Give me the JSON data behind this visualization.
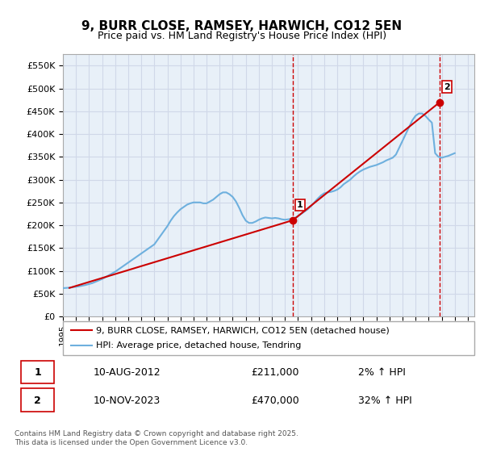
{
  "title": "9, BURR CLOSE, RAMSEY, HARWICH, CO12 5EN",
  "subtitle": "Price paid vs. HM Land Registry's House Price Index (HPI)",
  "xlabel": "",
  "ylabel": "",
  "ylim": [
    0,
    575000
  ],
  "xlim_start": 1995.0,
  "xlim_end": 2026.5,
  "yticks": [
    0,
    50000,
    100000,
    150000,
    200000,
    250000,
    300000,
    350000,
    400000,
    450000,
    500000,
    550000
  ],
  "ytick_labels": [
    "£0",
    "£50K",
    "£100K",
    "£150K",
    "£200K",
    "£250K",
    "£300K",
    "£350K",
    "£400K",
    "£450K",
    "£500K",
    "£550K"
  ],
  "xticks": [
    1995,
    1996,
    1997,
    1998,
    1999,
    2000,
    2001,
    2002,
    2003,
    2004,
    2005,
    2006,
    2007,
    2008,
    2009,
    2010,
    2011,
    2012,
    2013,
    2014,
    2015,
    2016,
    2017,
    2018,
    2019,
    2020,
    2021,
    2022,
    2023,
    2024,
    2025,
    2026
  ],
  "hpi_color": "#6eb0de",
  "price_color": "#cc0000",
  "vline_color": "#cc0000",
  "grid_color": "#d0d8e8",
  "background_color": "#e8f0f8",
  "plot_bg_color": "#e8f0f8",
  "sale1_x": 2012.61,
  "sale1_y": 211000,
  "sale1_label": "1",
  "sale2_x": 2023.86,
  "sale2_y": 470000,
  "sale2_label": "2",
  "legend_line1": "9, BURR CLOSE, RAMSEY, HARWICH, CO12 5EN (detached house)",
  "legend_line2": "HPI: Average price, detached house, Tendring",
  "annotation1_date": "10-AUG-2012",
  "annotation1_price": "£211,000",
  "annotation1_hpi": "2% ↑ HPI",
  "annotation2_date": "10-NOV-2023",
  "annotation2_price": "£470,000",
  "annotation2_hpi": "32% ↑ HPI",
  "footnote": "Contains HM Land Registry data © Crown copyright and database right 2025.\nThis data is licensed under the Open Government Licence v3.0.",
  "hpi_data_x": [
    1995.0,
    1995.25,
    1995.5,
    1995.75,
    1996.0,
    1996.25,
    1996.5,
    1996.75,
    1997.0,
    1997.25,
    1997.5,
    1997.75,
    1998.0,
    1998.25,
    1998.5,
    1998.75,
    1999.0,
    1999.25,
    1999.5,
    1999.75,
    2000.0,
    2000.25,
    2000.5,
    2000.75,
    2001.0,
    2001.25,
    2001.5,
    2001.75,
    2002.0,
    2002.25,
    2002.5,
    2002.75,
    2003.0,
    2003.25,
    2003.5,
    2003.75,
    2004.0,
    2004.25,
    2004.5,
    2004.75,
    2005.0,
    2005.25,
    2005.5,
    2005.75,
    2006.0,
    2006.25,
    2006.5,
    2006.75,
    2007.0,
    2007.25,
    2007.5,
    2007.75,
    2008.0,
    2008.25,
    2008.5,
    2008.75,
    2009.0,
    2009.25,
    2009.5,
    2009.75,
    2010.0,
    2010.25,
    2010.5,
    2010.75,
    2011.0,
    2011.25,
    2011.5,
    2011.75,
    2012.0,
    2012.25,
    2012.5,
    2012.75,
    2013.0,
    2013.25,
    2013.5,
    2013.75,
    2014.0,
    2014.25,
    2014.5,
    2014.75,
    2015.0,
    2015.25,
    2015.5,
    2015.75,
    2016.0,
    2016.25,
    2016.5,
    2016.75,
    2017.0,
    2017.25,
    2017.5,
    2017.75,
    2018.0,
    2018.25,
    2018.5,
    2018.75,
    2019.0,
    2019.25,
    2019.5,
    2019.75,
    2020.0,
    2020.25,
    2020.5,
    2020.75,
    2021.0,
    2021.25,
    2021.5,
    2021.75,
    2022.0,
    2022.25,
    2022.5,
    2022.75,
    2023.0,
    2023.25,
    2023.5,
    2023.75,
    2024.0,
    2024.25,
    2024.5,
    2024.75,
    2025.0
  ],
  "hpi_data_y": [
    62000,
    62500,
    63000,
    64000,
    65000,
    66000,
    67500,
    69000,
    71000,
    73000,
    76000,
    79000,
    82000,
    86000,
    90000,
    94000,
    98000,
    103000,
    108000,
    113000,
    118000,
    123000,
    128000,
    133000,
    138000,
    143000,
    148000,
    153000,
    158000,
    168000,
    178000,
    188000,
    198000,
    210000,
    220000,
    228000,
    235000,
    240000,
    245000,
    248000,
    250000,
    250000,
    250000,
    248000,
    248000,
    252000,
    256000,
    262000,
    268000,
    272000,
    272000,
    268000,
    262000,
    252000,
    238000,
    222000,
    210000,
    205000,
    205000,
    208000,
    212000,
    215000,
    217000,
    216000,
    215000,
    216000,
    215000,
    213000,
    212000,
    213000,
    214000,
    216000,
    220000,
    225000,
    230000,
    235000,
    242000,
    250000,
    258000,
    265000,
    270000,
    272000,
    273000,
    275000,
    278000,
    283000,
    290000,
    295000,
    300000,
    307000,
    313000,
    318000,
    322000,
    325000,
    328000,
    330000,
    332000,
    335000,
    338000,
    342000,
    345000,
    348000,
    355000,
    370000,
    385000,
    400000,
    415000,
    430000,
    440000,
    445000,
    445000,
    440000,
    432000,
    425000,
    358000,
    350000,
    348000,
    350000,
    352000,
    355000,
    358000
  ],
  "price_data_x": [
    1995.5,
    2012.61,
    2023.86
  ],
  "price_data_y": [
    62500,
    211000,
    470000
  ]
}
